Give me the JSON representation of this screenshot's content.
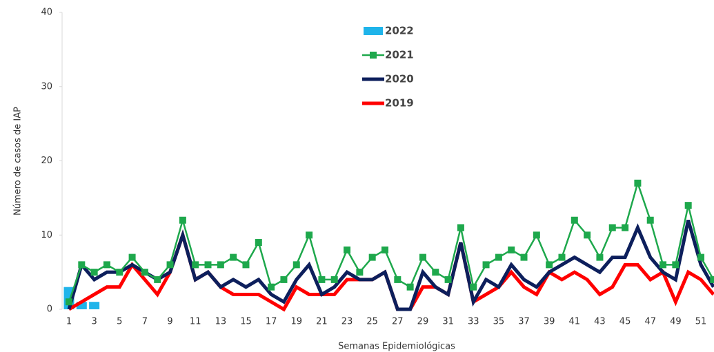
{
  "chart_data": {
    "type": "line",
    "ylabel": "Número de casos de IAP",
    "xlabel": "Semanas Epidemiológicas",
    "categories": [
      1,
      null,
      3,
      null,
      5,
      null,
      7,
      null,
      9,
      null,
      11,
      null,
      13,
      null,
      15,
      null,
      17,
      null,
      19,
      null,
      21,
      null,
      23,
      null,
      25,
      null,
      27,
      null,
      29,
      null,
      31,
      null,
      33,
      null,
      35,
      null,
      37,
      null,
      39,
      null,
      41,
      null,
      43,
      null,
      45,
      null,
      47,
      null,
      49,
      null,
      51,
      null
    ],
    "ylim": [
      0,
      40
    ],
    "yticks": [
      0,
      10,
      20,
      30,
      40
    ],
    "series": [
      {
        "name": "2022",
        "type": "bar",
        "color": "#1fb4ea",
        "values": [
          3,
          1,
          1,
          null,
          null,
          null,
          null,
          null,
          null,
          null,
          null,
          null,
          null,
          null,
          null,
          null,
          null,
          null,
          null,
          null,
          null,
          null,
          null,
          null,
          null,
          null,
          null,
          null,
          null,
          null,
          null,
          null,
          null,
          null,
          null,
          null,
          null,
          null,
          null,
          null,
          null,
          null,
          null,
          null,
          null,
          null,
          null,
          null,
          null,
          null,
          null,
          null
        ]
      },
      {
        "name": "2021",
        "type": "line",
        "marker": "square",
        "color": "#1ea84c",
        "values": [
          1,
          6,
          5,
          6,
          5,
          7,
          5,
          4,
          6,
          12,
          6,
          6,
          6,
          7,
          6,
          9,
          3,
          4,
          6,
          10,
          4,
          4,
          8,
          5,
          7,
          8,
          4,
          3,
          7,
          5,
          4,
          11,
          3,
          6,
          7,
          8,
          7,
          10,
          6,
          7,
          12,
          10,
          7,
          11,
          11,
          17,
          12,
          6,
          6,
          14,
          7,
          4
        ]
      },
      {
        "name": "2020",
        "type": "line",
        "color": "#0d1f5c",
        "values": [
          0,
          6,
          4,
          5,
          5,
          6,
          5,
          4,
          5,
          10,
          4,
          5,
          3,
          4,
          3,
          4,
          2,
          1,
          4,
          6,
          2,
          3,
          5,
          4,
          4,
          5,
          0,
          0,
          5,
          3,
          2,
          9,
          1,
          4,
          3,
          6,
          4,
          3,
          5,
          6,
          7,
          6,
          5,
          7,
          7,
          11,
          7,
          5,
          4,
          12,
          6,
          3
        ]
      },
      {
        "name": "2019",
        "type": "line",
        "color": "#ff0000",
        "values": [
          0,
          1,
          2,
          3,
          3,
          6,
          4,
          2,
          5,
          10,
          4,
          5,
          3,
          2,
          2,
          2,
          1,
          0,
          3,
          2,
          2,
          2,
          4,
          4,
          4,
          5,
          0,
          0,
          3,
          3,
          2,
          9,
          1,
          2,
          3,
          5,
          3,
          2,
          5,
          4,
          5,
          4,
          2,
          3,
          6,
          6,
          4,
          5,
          1,
          5,
          4,
          2
        ]
      }
    ]
  }
}
